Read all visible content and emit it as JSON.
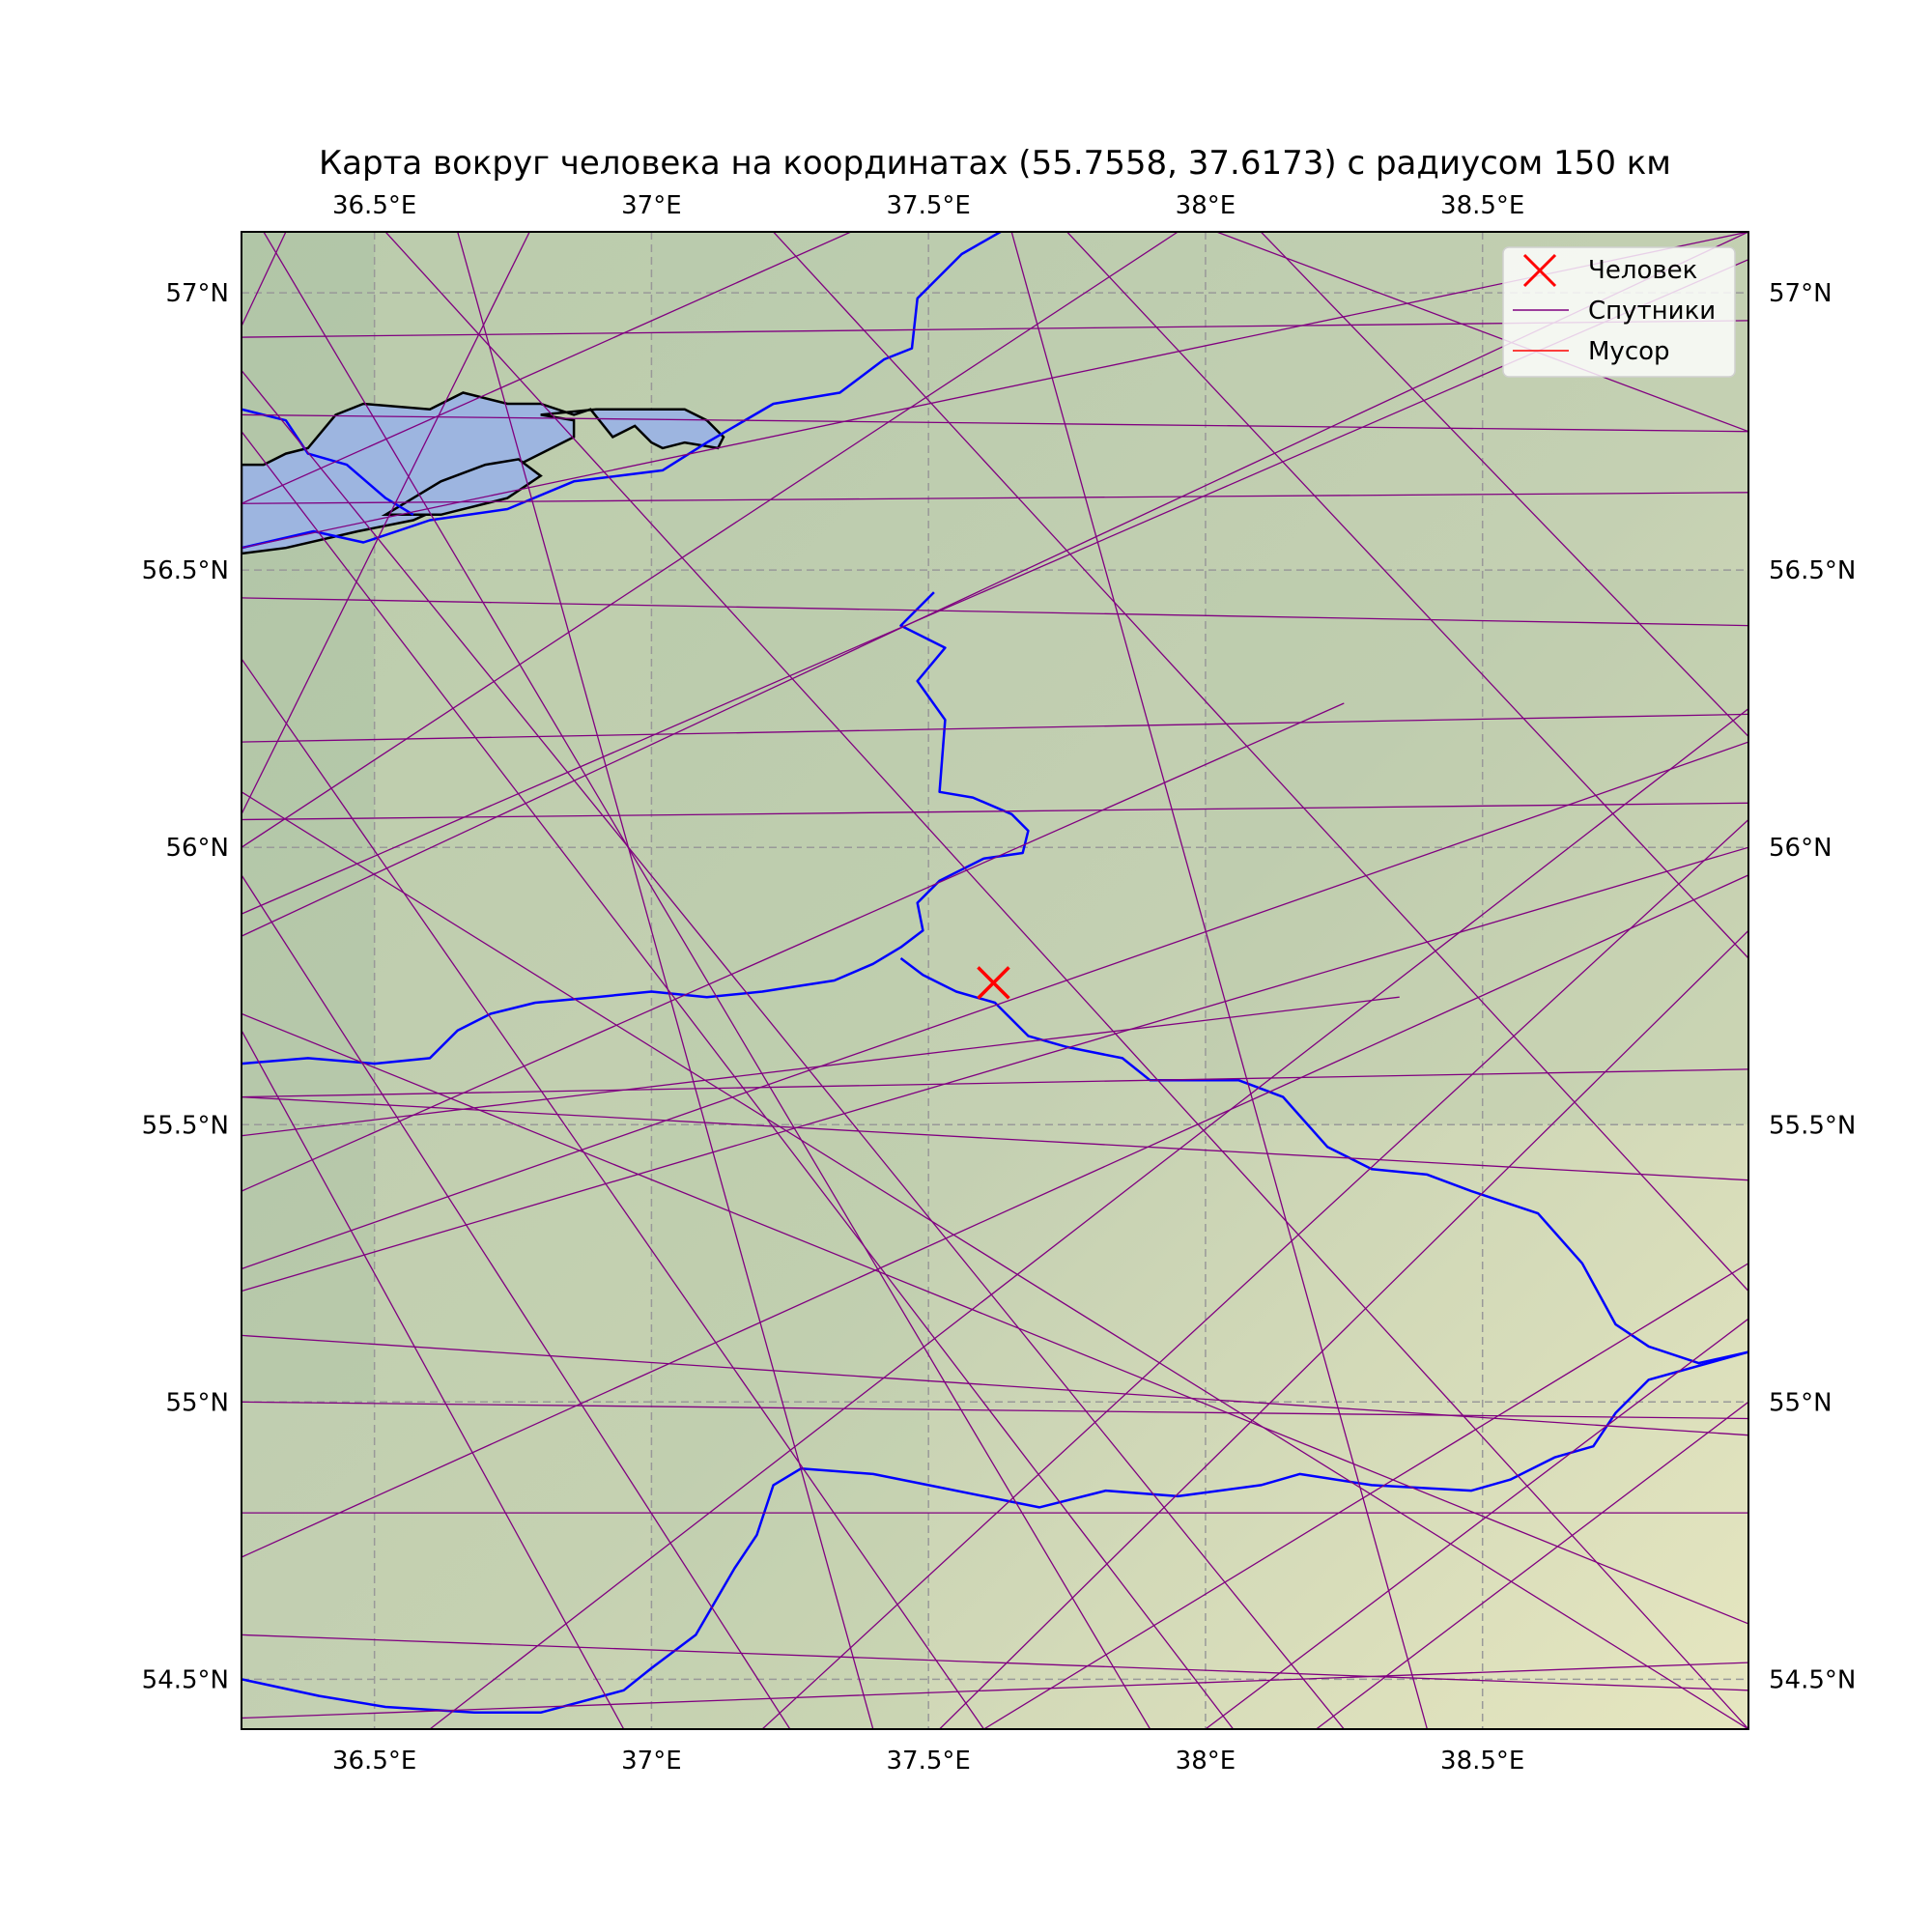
{
  "title": "Карта вокруг человека на координатах (55.7558, 37.6173) с радиусом 150 км",
  "colors": {
    "satellite": "#800080",
    "debris": "#ff0000",
    "river": "#0000ff",
    "lake_fill": "#9db5e0",
    "grid": "#999999",
    "person": "#ff0000"
  },
  "legend": {
    "position": "top-right",
    "items": [
      {
        "label": "Человек",
        "icon": "x-marker-icon"
      },
      {
        "label": "Спутники",
        "icon": "purple-line-icon"
      },
      {
        "label": "Мусор",
        "icon": "red-line-icon"
      }
    ]
  },
  "chart_data": {
    "type": "map",
    "title": "Карта вокруг человека на координатах (55.7558, 37.6173) с радиусом 150 км",
    "xlim": [
      36.26,
      38.98
    ],
    "ylim": [
      54.41,
      57.11
    ],
    "grid": true,
    "x_ticks": [
      {
        "value": 36.5,
        "label": "36.5°E"
      },
      {
        "value": 37.0,
        "label": "37°E"
      },
      {
        "value": 37.5,
        "label": "37.5°E"
      },
      {
        "value": 38.0,
        "label": "38°E"
      },
      {
        "value": 38.5,
        "label": "38.5°E"
      }
    ],
    "y_ticks": [
      {
        "value": 57.0,
        "label": "57°N"
      },
      {
        "value": 56.5,
        "label": "56.5°N"
      },
      {
        "value": 56.0,
        "label": "56°N"
      },
      {
        "value": 55.5,
        "label": "55.5°N"
      },
      {
        "value": 55.0,
        "label": "55°N"
      },
      {
        "value": 54.5,
        "label": "54.5°N"
      }
    ],
    "person": {
      "lat": 55.7558,
      "lon": 37.6173
    },
    "rivers": [
      [
        [
          37.63,
          57.11
        ],
        [
          37.56,
          57.07
        ],
        [
          37.48,
          56.99
        ],
        [
          37.47,
          56.9
        ],
        [
          37.42,
          56.88
        ],
        [
          37.34,
          56.82
        ],
        [
          37.22,
          56.8
        ],
        [
          37.1,
          56.73
        ],
        [
          37.02,
          56.68
        ],
        [
          36.86,
          56.66
        ],
        [
          36.74,
          56.61
        ],
        [
          36.6,
          56.59
        ],
        [
          36.48,
          56.55
        ],
        [
          36.39,
          56.57
        ],
        [
          36.26,
          56.54
        ]
      ],
      [
        [
          37.51,
          56.46
        ],
        [
          37.45,
          56.4
        ],
        [
          37.53,
          56.36
        ],
        [
          37.48,
          56.3
        ],
        [
          37.53,
          56.23
        ],
        [
          37.52,
          56.1
        ],
        [
          37.58,
          56.09
        ],
        [
          37.65,
          56.06
        ],
        [
          37.68,
          56.03
        ],
        [
          37.67,
          55.99
        ],
        [
          37.6,
          55.98
        ],
        [
          37.52,
          55.94
        ],
        [
          37.48,
          55.9
        ],
        [
          37.49,
          55.85
        ],
        [
          37.45,
          55.82
        ],
        [
          37.4,
          55.79
        ],
        [
          37.33,
          55.76
        ],
        [
          37.2,
          55.74
        ],
        [
          37.1,
          55.73
        ],
        [
          37.0,
          55.74
        ],
        [
          36.9,
          55.73
        ],
        [
          36.79,
          55.72
        ],
        [
          36.71,
          55.7
        ],
        [
          36.65,
          55.67
        ],
        [
          36.6,
          55.62
        ],
        [
          36.5,
          55.61
        ],
        [
          36.38,
          55.62
        ],
        [
          36.26,
          55.61
        ]
      ],
      [
        [
          37.45,
          55.8
        ],
        [
          37.49,
          55.77
        ],
        [
          37.55,
          55.74
        ],
        [
          37.62,
          55.72
        ],
        [
          37.68,
          55.66
        ],
        [
          37.75,
          55.64
        ],
        [
          37.85,
          55.62
        ],
        [
          37.9,
          55.58
        ],
        [
          38.0,
          55.58
        ],
        [
          38.06,
          55.58
        ],
        [
          38.14,
          55.55
        ],
        [
          38.22,
          55.46
        ],
        [
          38.3,
          55.42
        ],
        [
          38.4,
          55.41
        ],
        [
          38.48,
          55.38
        ],
        [
          38.6,
          55.34
        ],
        [
          38.68,
          55.25
        ],
        [
          38.74,
          55.14
        ],
        [
          38.8,
          55.1
        ],
        [
          38.89,
          55.07
        ],
        [
          38.98,
          55.09
        ]
      ],
      [
        [
          38.98,
          55.09
        ],
        [
          38.8,
          55.04
        ],
        [
          38.74,
          54.98
        ],
        [
          38.7,
          54.92
        ],
        [
          38.63,
          54.9
        ],
        [
          38.55,
          54.86
        ],
        [
          38.48,
          54.84
        ],
        [
          38.3,
          54.85
        ],
        [
          38.17,
          54.87
        ],
        [
          38.1,
          54.85
        ],
        [
          37.95,
          54.83
        ],
        [
          37.82,
          54.84
        ],
        [
          37.7,
          54.81
        ],
        [
          37.6,
          54.83
        ],
        [
          37.5,
          54.85
        ],
        [
          37.4,
          54.87
        ],
        [
          37.27,
          54.88
        ],
        [
          37.22,
          54.85
        ],
        [
          37.19,
          54.76
        ],
        [
          37.15,
          54.7
        ],
        [
          37.08,
          54.58
        ],
        [
          37.0,
          54.52
        ],
        [
          36.95,
          54.48
        ],
        [
          36.8,
          54.44
        ],
        [
          36.68,
          54.44
        ],
        [
          36.52,
          54.45
        ],
        [
          36.4,
          54.47
        ],
        [
          36.26,
          54.5
        ]
      ],
      [
        [
          36.26,
          56.79
        ],
        [
          36.34,
          56.77
        ],
        [
          36.38,
          56.71
        ],
        [
          36.45,
          56.69
        ],
        [
          36.52,
          56.63
        ],
        [
          36.57,
          56.6
        ]
      ]
    ],
    "lakes": [
      [
        [
          36.26,
          56.53
        ],
        [
          36.34,
          56.54
        ],
        [
          36.47,
          56.57
        ],
        [
          36.57,
          56.59
        ],
        [
          36.66,
          56.63
        ],
        [
          36.72,
          56.67
        ],
        [
          36.8,
          56.71
        ],
        [
          36.86,
          56.74
        ],
        [
          36.86,
          56.77
        ],
        [
          36.8,
          56.78
        ],
        [
          36.9,
          56.79
        ],
        [
          37.0,
          56.79
        ],
        [
          37.06,
          56.79
        ],
        [
          37.1,
          56.77
        ],
        [
          37.13,
          56.74
        ],
        [
          37.12,
          56.72
        ],
        [
          37.06,
          56.73
        ],
        [
          37.02,
          56.72
        ],
        [
          37.0,
          56.73
        ],
        [
          36.97,
          56.76
        ],
        [
          36.93,
          56.74
        ],
        [
          36.89,
          56.79
        ],
        [
          36.86,
          56.78
        ],
        [
          36.8,
          56.8
        ],
        [
          36.74,
          56.8
        ],
        [
          36.66,
          56.82
        ],
        [
          36.6,
          56.79
        ],
        [
          36.48,
          56.8
        ],
        [
          36.43,
          56.78
        ],
        [
          36.38,
          56.72
        ],
        [
          36.34,
          56.71
        ],
        [
          36.3,
          56.69
        ],
        [
          36.26,
          56.69
        ]
      ],
      [
        [
          36.52,
          56.6
        ],
        [
          36.62,
          56.66
        ],
        [
          36.7,
          56.69
        ],
        [
          36.76,
          56.7
        ],
        [
          36.8,
          56.67
        ],
        [
          36.74,
          56.63
        ],
        [
          36.62,
          56.6
        ]
      ]
    ],
    "satellite_tracks": [
      [
        [
          36.26,
          56.94
        ],
        [
          36.34,
          57.11
        ]
      ],
      [
        [
          36.26,
          56.45
        ],
        [
          38.98,
          56.4
        ]
      ],
      [
        [
          36.26,
          56.19
        ],
        [
          38.98,
          56.24
        ]
      ],
      [
        [
          36.26,
          56.05
        ],
        [
          38.98,
          56.08
        ]
      ],
      [
        [
          36.26,
          55.55
        ],
        [
          38.98,
          55.6
        ]
      ],
      [
        [
          36.26,
          55.0
        ],
        [
          38.98,
          54.97
        ]
      ],
      [
        [
          36.26,
          54.8
        ],
        [
          38.98,
          54.8
        ]
      ],
      [
        [
          36.26,
          54.43
        ],
        [
          38.98,
          54.53
        ]
      ],
      [
        [
          36.26,
          56.62
        ],
        [
          38.98,
          56.64
        ]
      ],
      [
        [
          36.26,
          56.92
        ],
        [
          38.98,
          56.95
        ]
      ],
      [
        [
          36.26,
          56.78
        ],
        [
          38.98,
          56.75
        ]
      ],
      [
        [
          36.26,
          55.55
        ],
        [
          38.98,
          55.4
        ]
      ],
      [
        [
          36.26,
          55.88
        ],
        [
          38.98,
          57.06
        ]
      ],
      [
        [
          36.26,
          55.84
        ],
        [
          38.98,
          57.11
        ]
      ],
      [
        [
          36.26,
          56.0
        ],
        [
          37.95,
          57.11
        ]
      ],
      [
        [
          36.26,
          56.06
        ],
        [
          36.78,
          57.11
        ]
      ],
      [
        [
          36.26,
          56.54
        ],
        [
          38.98,
          57.11
        ]
      ],
      [
        [
          36.26,
          55.24
        ],
        [
          38.98,
          56.19
        ]
      ],
      [
        [
          36.26,
          55.2
        ],
        [
          38.98,
          56.0
        ]
      ],
      [
        [
          36.26,
          54.72
        ],
        [
          38.98,
          55.95
        ]
      ],
      [
        [
          36.26,
          55.48
        ],
        [
          38.35,
          55.73
        ]
      ],
      [
        [
          36.3,
          57.11
        ],
        [
          37.9,
          54.41
        ]
      ],
      [
        [
          36.26,
          56.86
        ],
        [
          38.25,
          54.41
        ]
      ],
      [
        [
          36.26,
          56.75
        ],
        [
          38.05,
          54.41
        ]
      ],
      [
        [
          36.26,
          56.34
        ],
        [
          37.6,
          54.41
        ]
      ],
      [
        [
          36.26,
          55.95
        ],
        [
          37.25,
          54.41
        ]
      ],
      [
        [
          36.26,
          55.67
        ],
        [
          36.95,
          54.41
        ]
      ],
      [
        [
          36.65,
          57.11
        ],
        [
          37.4,
          54.41
        ]
      ],
      [
        [
          36.52,
          57.11
        ],
        [
          38.98,
          54.41
        ]
      ],
      [
        [
          37.22,
          57.11
        ],
        [
          38.98,
          55.2
        ]
      ],
      [
        [
          37.75,
          57.11
        ],
        [
          38.98,
          55.8
        ]
      ],
      [
        [
          38.1,
          57.11
        ],
        [
          38.98,
          56.2
        ]
      ],
      [
        [
          38.02,
          57.11
        ],
        [
          38.98,
          56.75
        ]
      ],
      [
        [
          37.52,
          54.41
        ],
        [
          38.98,
          55.85
        ]
      ],
      [
        [
          37.6,
          54.41
        ],
        [
          38.98,
          55.25
        ]
      ],
      [
        [
          37.2,
          54.41
        ],
        [
          38.98,
          56.05
        ]
      ],
      [
        [
          36.6,
          54.41
        ],
        [
          38.98,
          56.25
        ]
      ],
      [
        [
          36.26,
          56.62
        ],
        [
          37.36,
          57.11
        ]
      ],
      [
        [
          36.26,
          54.58
        ],
        [
          38.98,
          54.48
        ]
      ],
      [
        [
          36.26,
          55.12
        ],
        [
          38.98,
          54.94
        ]
      ],
      [
        [
          36.26,
          55.7
        ],
        [
          38.98,
          54.6
        ]
      ],
      [
        [
          36.26,
          56.1
        ],
        [
          38.98,
          54.41
        ]
      ],
      [
        [
          38.2,
          54.41
        ],
        [
          38.98,
          55.0
        ]
      ],
      [
        [
          38.0,
          54.41
        ],
        [
          38.98,
          55.15
        ]
      ],
      [
        [
          37.65,
          57.11
        ],
        [
          38.4,
          54.41
        ]
      ],
      [
        [
          36.26,
          55.38
        ],
        [
          38.25,
          56.26
        ]
      ]
    ],
    "debris_tracks": []
  }
}
